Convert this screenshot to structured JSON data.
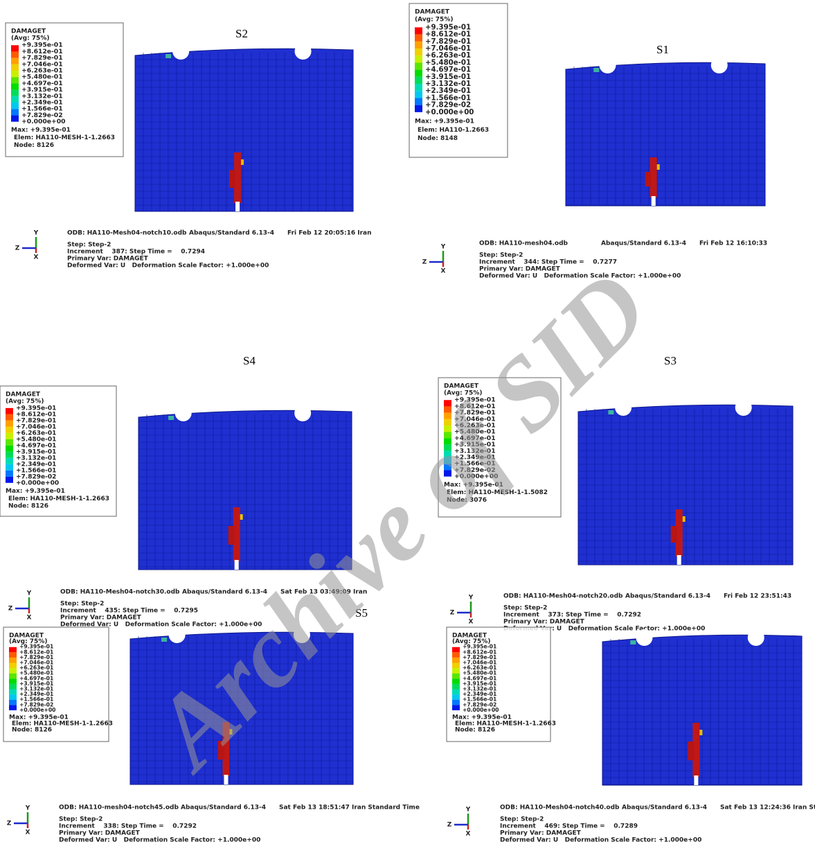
{
  "triad": {
    "y": "Y",
    "z": "Z",
    "x": "X"
  },
  "watermark": "Archive of SID",
  "panels": [
    {
      "label": "S2",
      "legend": {
        "title": "DAMAGET",
        "avg": "(Avg: 75%)",
        "values": [
          "+9.395e-01",
          "+8.612e-01",
          "+7.829e-01",
          "+7.046e-01",
          "+6.263e-01",
          "+5.480e-01",
          "+4.697e-01",
          "+3.915e-01",
          "+3.132e-01",
          "+2.349e-01",
          "+1.566e-01",
          "+7.829e-02",
          "+0.000e+00"
        ],
        "max": "Max: +9.395e-01",
        "elem": "Elem: HA110-MESH-1-1.2663",
        "node": "Node: 8126"
      },
      "info": {
        "odb": "ODB: HA110-Mesh04-notch10.odb",
        "solver": "Abaqus/Standard 6.13-4",
        "date": "Fri Feb 12 20:05:16 Iran",
        "step": "Step: Step-2",
        "increment": "Increment    387: Step Time =    0.7294",
        "primary": "Primary Var: DAMAGET",
        "deformed": "Deformed Var: U   Deformation Scale Factor: +1.000e+00"
      }
    },
    {
      "label": "S1",
      "legend": {
        "title": "DAMAGET",
        "avg": "(Avg: 75%)",
        "values": [
          "+9.395e-01",
          "+8.612e-01",
          "+7.829e-01",
          "+7.046e-01",
          "+6.263e-01",
          "+5.480e-01",
          "+4.697e-01",
          "+3.915e-01",
          "+3.132e-01",
          "+2.349e-01",
          "+1.566e-01",
          "+7.829e-02",
          "+0.000e+00"
        ],
        "max": "Max: +9.395e-01",
        "elem": "Elem: HA110-1.2663",
        "node": "Node: 8148"
      },
      "info": {
        "odb": "ODB: HA110-mesh04.odb",
        "solver": "Abaqus/Standard 6.13-4",
        "date": "Fri Feb 12 16:10:33",
        "step": "Step: Step-2",
        "increment": "Increment    344: Step Time =    0.7277",
        "primary": "Primary Var: DAMAGET",
        "deformed": "Deformed Var: U   Deformation Scale Factor: +1.000e+00"
      }
    },
    {
      "label": "S4",
      "legend": {
        "title": "DAMAGET",
        "avg": "(Avg: 75%)",
        "values": [
          "+9.395e-01",
          "+8.612e-01",
          "+7.829e-01",
          "+7.046e-01",
          "+6.263e-01",
          "+5.480e-01",
          "+4.697e-01",
          "+3.915e-01",
          "+3.132e-01",
          "+2.349e-01",
          "+1.566e-01",
          "+7.829e-02",
          "+0.000e+00"
        ],
        "max": "Max: +9.395e-01",
        "elem": "Elem: HA110-MESH-1-1.2663",
        "node": "Node: 8126"
      },
      "info": {
        "odb": "ODB: HA110-Mesh04-notch30.odb",
        "solver": "Abaqus/Standard 6.13-4",
        "date": "Sat Feb 13 03:49:09 Iran",
        "step": "Step: Step-2",
        "increment": "Increment    435: Step Time =    0.7295",
        "primary": "Primary Var: DAMAGET",
        "deformed": "Deformed Var: U   Deformation Scale Factor: +1.000e+00"
      }
    },
    {
      "label": "S3",
      "legend": {
        "title": "DAMAGET",
        "avg": "(Avg: 75%)",
        "values": [
          "+9.395e-01",
          "+8.612e-01",
          "+7.829e-01",
          "+7.046e-01",
          "+6.263e-01",
          "+5.480e-01",
          "+4.697e-01",
          "+3.915e-01",
          "+3.132e-01",
          "+2.349e-01",
          "+1.566e-01",
          "+7.829e-02",
          "+0.000e+00"
        ],
        "max": "Max: +9.395e-01",
        "elem": "Elem: HA110-MESH-1-1.5082",
        "node": "Node: 3076"
      },
      "info": {
        "odb": "ODB: HA110-Mesh04-notch20.odb",
        "solver": "Abaqus/Standard 6.13-4",
        "date": "Fri Feb 12 23:51:43",
        "step": "Step: Step-2",
        "increment": "Increment    373: Step Time =    0.7292",
        "primary": "Primary Var: DAMAGET",
        "deformed": "Deformed Var: U   Deformation Scale Factor: +1.000e+00"
      }
    },
    {
      "label": "S5",
      "legend": {
        "title": "DAMAGET",
        "avg": "(Avg: 75%)",
        "values": [
          "+9.395e-01",
          "+8.612e-01",
          "+7.829e-01",
          "+7.046e-01",
          "+6.263e-01",
          "+5.480e-01",
          "+4.697e-01",
          "+3.915e-01",
          "+3.132e-01",
          "+2.349e-01",
          "+1.566e-01",
          "+7.829e-02",
          "+0.000e+00"
        ],
        "max": "Max: +9.395e-01",
        "elem": "Elem: HA110-MESH-1-1.2663",
        "node": "Node: 8126"
      },
      "info": {
        "odb": "ODB: HA110-mesh04-notch45.odb",
        "solver": "Abaqus/Standard 6.13-4",
        "date": "Sat Feb 13 18:51:47 Iran Standard Time",
        "step": "Step: Step-2",
        "increment": "Increment    338: Step Time =    0.7292",
        "primary": "Primary Var: DAMAGET",
        "deformed": "Deformed Var: U   Deformation Scale Factor: +1.000e+00"
      }
    },
    {
      "label": null,
      "legend": {
        "title": "DAMAGET",
        "avg": "(Avg: 75%)",
        "values": [
          "+9.395e-01",
          "+8.612e-01",
          "+7.829e-01",
          "+7.046e-01",
          "+6.263e-01",
          "+5.480e-01",
          "+4.697e-01",
          "+3.915e-01",
          "+3.132e-01",
          "+2.349e-01",
          "+1.566e-01",
          "+7.829e-02",
          "+0.000e+00"
        ],
        "max": "Max: +9.395e-01",
        "elem": "Elem: HA110-MESH-1-1.2663",
        "node": "Node: 8126"
      },
      "info": {
        "odb": "ODB: HA110-Mesh04-notch40.odb",
        "solver": "Abaqus/Standard 6.13-4",
        "date": "Sat Feb 13 12:24:36 Iran Standard Time",
        "step": "Step: Step-2",
        "increment": "Increment    469: Step Time =    0.7289",
        "primary": "Primary Var: DAMAGET",
        "deformed": "Deformed Var: U   Deformation Scale Factor: +1.000e+00"
      }
    }
  ]
}
